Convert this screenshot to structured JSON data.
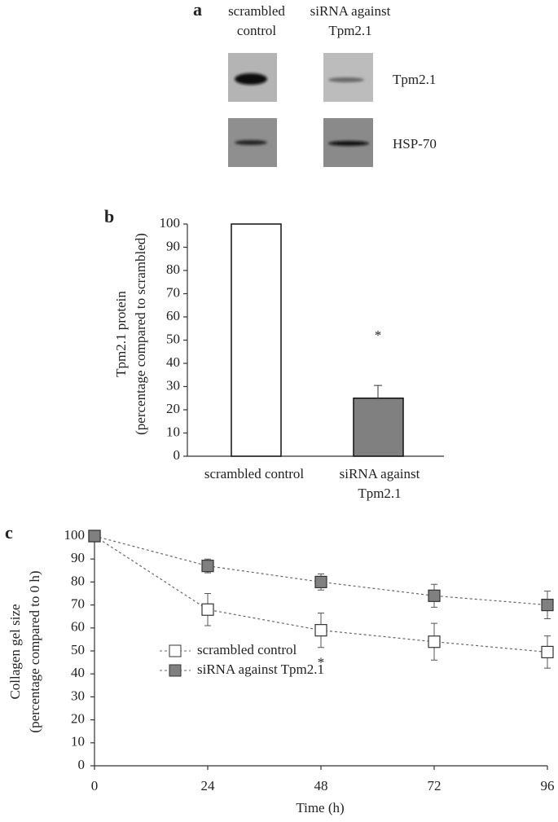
{
  "blot": {
    "panel": "a",
    "columns": [
      "scrambled\ncontrol",
      "siRNA against\nTpm2.1"
    ],
    "rows": [
      "Tpm2.1",
      "HSP-70"
    ]
  },
  "chart_data": [
    {
      "type": "bar",
      "panel": "b",
      "ylabel": "Tpm2.1 protein\n(percentage compared to scrambled)",
      "categories": [
        "scrambled control",
        "siRNA against\nTpm2.1"
      ],
      "values": [
        100,
        25
      ],
      "errors": [
        0,
        5.5
      ],
      "colors": [
        "#ffffff",
        "#808080"
      ],
      "ylim": [
        0,
        100
      ],
      "yticks": [
        0,
        10,
        20,
        30,
        40,
        50,
        60,
        70,
        80,
        90,
        100
      ],
      "annotation": "*"
    },
    {
      "type": "line",
      "panel": "c",
      "ylabel": "Collagen gel size\n(percentage compared to 0 h)",
      "xlabel": "Time (h)",
      "x": [
        0,
        24,
        48,
        72,
        96
      ],
      "xlim": [
        0,
        96
      ],
      "xticks": [
        0,
        24,
        48,
        72,
        96
      ],
      "ylim": [
        0,
        100
      ],
      "yticks": [
        0,
        10,
        20,
        30,
        40,
        50,
        60,
        70,
        80,
        90,
        100
      ],
      "series": [
        {
          "name": "scrambled control",
          "color": "#ffffff",
          "values": [
            100,
            68,
            59,
            54,
            49.5
          ],
          "errors": [
            0,
            7,
            7.5,
            8,
            7
          ]
        },
        {
          "name": "siRNA against Tpm2.1",
          "color": "#808080",
          "values": [
            100,
            87,
            80,
            74,
            70
          ],
          "errors": [
            0,
            3,
            3.5,
            5,
            6
          ]
        }
      ],
      "annotation": "*"
    }
  ]
}
